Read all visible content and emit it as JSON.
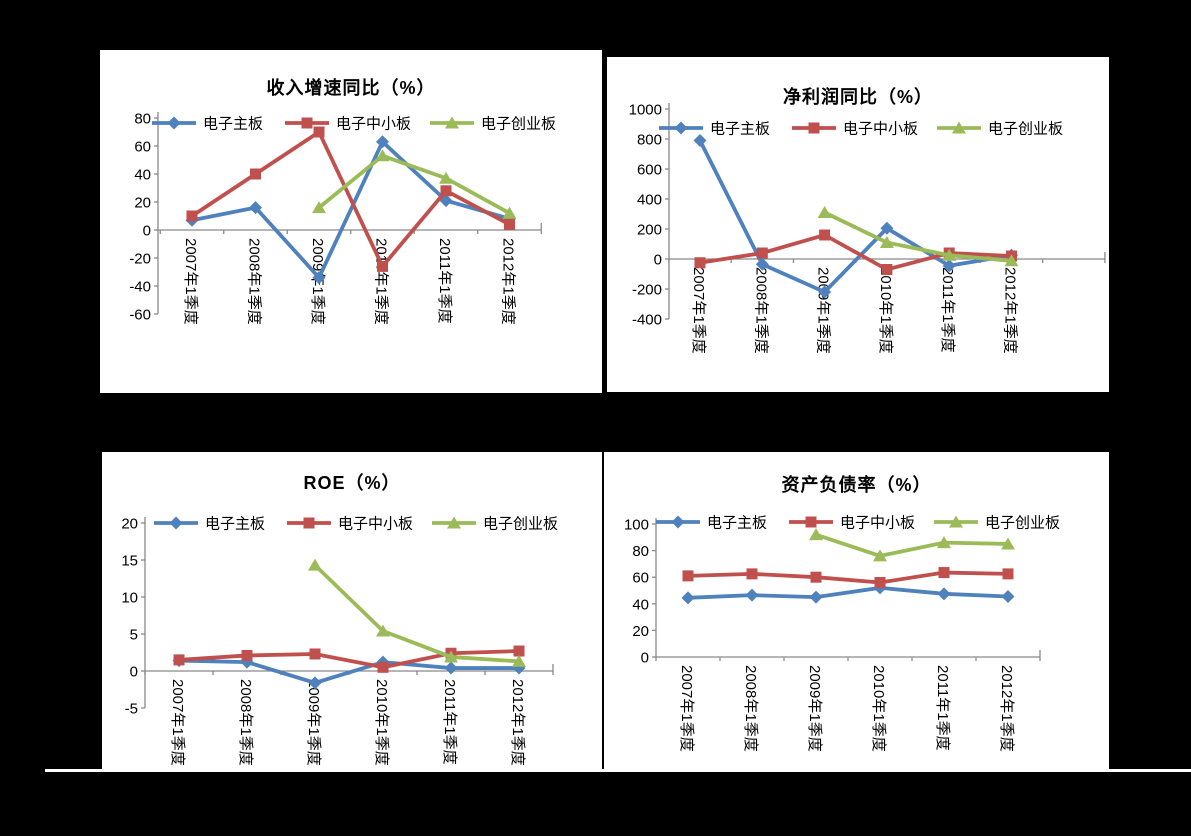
{
  "page": {
    "background_color": "#000000",
    "panel_color": "#ffffff",
    "axis_color": "#898989",
    "text_color": "#000000"
  },
  "series_colors": {
    "main_board": "#4F81BD",
    "sme_board": "#C0504D",
    "gem_board": "#9BBB59"
  },
  "chart_data": [
    {
      "id": "revenue-growth-yoy",
      "type": "line",
      "title": "收入增速同比（%）",
      "categories": [
        "2007年1季度",
        "2008年1季度",
        "2009年1季度",
        "2010年1季度",
        "2011年1季度",
        "2012年1季度"
      ],
      "yticks": [
        80,
        60,
        40,
        20,
        0,
        -20,
        -40,
        -60
      ],
      "ylim": [
        -60,
        80
      ],
      "grid": false,
      "legend_position": "top-inside",
      "x_label_rotation": 90,
      "series": [
        {
          "name": "电子主板",
          "color": "#4F81BD",
          "marker": "diamond",
          "values": [
            7,
            16,
            -34,
            63,
            21,
            8
          ]
        },
        {
          "name": "电子中小板",
          "color": "#C0504D",
          "marker": "square",
          "values": [
            10,
            40,
            70,
            -26,
            28,
            4
          ]
        },
        {
          "name": "电子创业板",
          "color": "#9BBB59",
          "marker": "triangle",
          "values": [
            null,
            null,
            16,
            53,
            37,
            12
          ]
        }
      ]
    },
    {
      "id": "net-profit-yoy",
      "type": "line",
      "title": "净利润同比（%）",
      "categories": [
        "2007年1季度",
        "2008年1季度",
        "2009年1季度",
        "2010年1季度",
        "2011年1季度",
        "2012年1季度"
      ],
      "yticks": [
        1000,
        800,
        600,
        400,
        200,
        0,
        -200,
        -400
      ],
      "ylim": [
        -400,
        1000
      ],
      "grid": false,
      "legend_position": "top-inside",
      "x_label_rotation": 90,
      "series": [
        {
          "name": "电子主板",
          "color": "#4F81BD",
          "marker": "diamond",
          "values": [
            790,
            -35,
            -220,
            205,
            -45,
            25
          ]
        },
        {
          "name": "电子中小板",
          "color": "#C0504D",
          "marker": "square",
          "values": [
            -25,
            40,
            160,
            -70,
            40,
            20
          ]
        },
        {
          "name": "电子创业板",
          "color": "#9BBB59",
          "marker": "triangle",
          "values": [
            null,
            null,
            310,
            110,
            25,
            -12
          ]
        }
      ]
    },
    {
      "id": "roe",
      "type": "line",
      "title": "ROE（%）",
      "categories": [
        "2007年1季度",
        "2008年1季度",
        "2009年1季度",
        "2010年1季度",
        "2011年1季度",
        "2012年1季度"
      ],
      "yticks": [
        20,
        15,
        10,
        5,
        0,
        -5
      ],
      "ylim": [
        -5,
        20
      ],
      "grid": false,
      "legend_position": "top-inside",
      "x_label_rotation": 90,
      "series": [
        {
          "name": "电子主板",
          "color": "#4F81BD",
          "marker": "diamond",
          "values": [
            1.4,
            1.2,
            -1.6,
            1.2,
            0.4,
            0.4
          ]
        },
        {
          "name": "电子中小板",
          "color": "#C0504D",
          "marker": "square",
          "values": [
            1.5,
            2.1,
            2.3,
            0.5,
            2.4,
            2.7
          ]
        },
        {
          "name": "电子创业板",
          "color": "#9BBB59",
          "marker": "triangle",
          "values": [
            null,
            null,
            14.3,
            5.4,
            1.9,
            1.3
          ]
        }
      ]
    },
    {
      "id": "asset-liability-ratio",
      "type": "line",
      "title": "资产负债率（%）",
      "categories": [
        "2007年1季度",
        "2008年1季度",
        "2009年1季度",
        "2010年1季度",
        "2011年1季度",
        "2012年1季度"
      ],
      "yticks": [
        100,
        80,
        60,
        40,
        20,
        0
      ],
      "ylim": [
        0,
        100
      ],
      "grid": false,
      "legend_position": "top-inside",
      "x_label_rotation": 90,
      "series": [
        {
          "name": "电子主板",
          "color": "#4F81BD",
          "marker": "diamond",
          "values": [
            44.5,
            46.5,
            45,
            52,
            47.5,
            45.5
          ]
        },
        {
          "name": "电子中小板",
          "color": "#C0504D",
          "marker": "square",
          "values": [
            61,
            62.5,
            60,
            56,
            63.5,
            62.5
          ]
        },
        {
          "name": "电子创业板",
          "color": "#9BBB59",
          "marker": "triangle",
          "values": [
            null,
            null,
            92,
            76,
            86,
            85
          ]
        }
      ]
    }
  ]
}
